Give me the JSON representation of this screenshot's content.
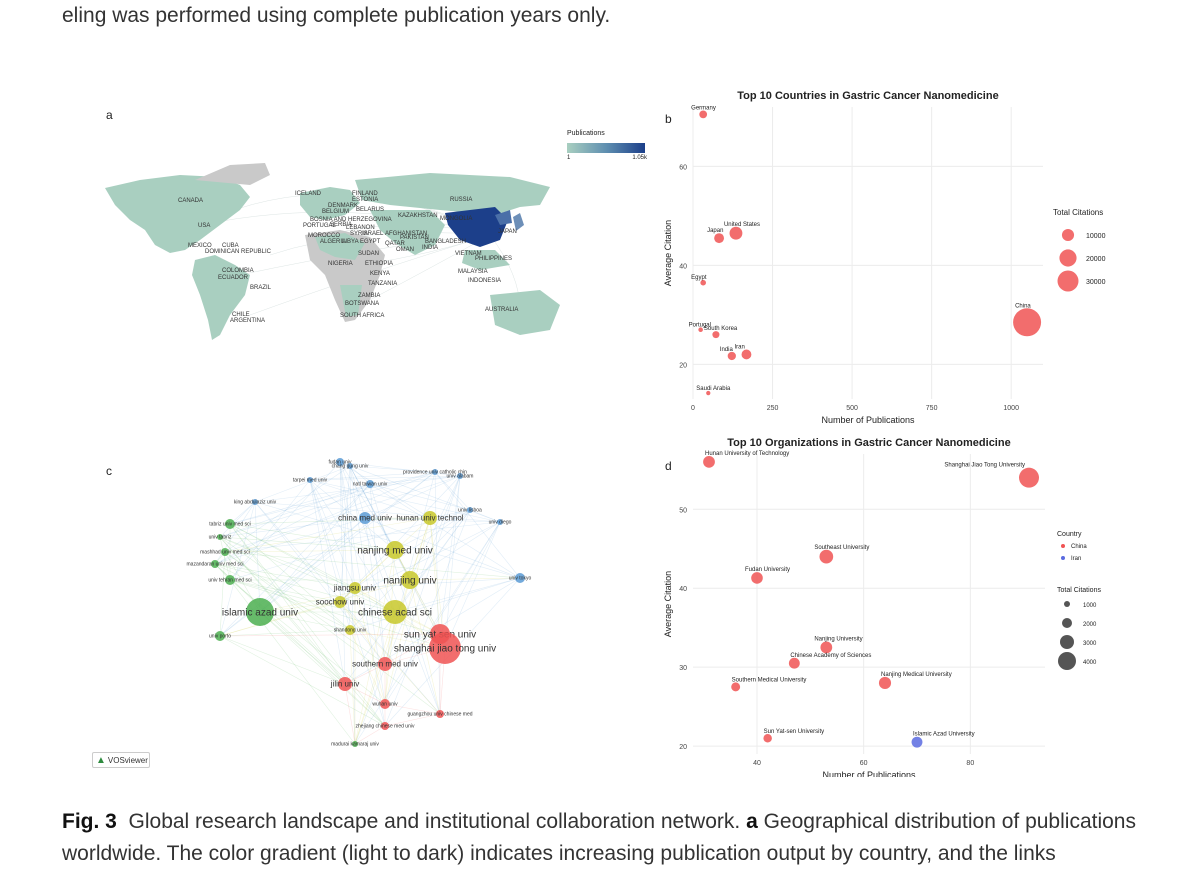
{
  "top_text": "eling was performed using complete publication years only.",
  "caption": {
    "fig_label": "Fig. 3",
    "text_part1": "Global research landscape and institutional collaboration network.",
    "panel_a": "a",
    "text_part2": "Geographical distribution of publications worldwide. The color gradient (light to dark) indicates increasing publication output by country, and the links"
  },
  "panel_a": {
    "letter": "a",
    "legend_title": "Publications",
    "legend_min": "1",
    "legend_max": "1.05k",
    "colors": {
      "land_low": "#a9cfc0",
      "land_high": "#1c3f8a",
      "no_data": "#c9c9c9"
    },
    "country_labels": [
      "ICELAND",
      "FINLAND",
      "ESTONIA",
      "RUSSIA",
      "CANADA",
      "DENMARK",
      "BELGIUM",
      "BELARUS",
      "KAZAKHSTAN",
      "MONGOLIA",
      "BOSNIA AND HERZEGOVINA",
      "USA",
      "PORTUGAL",
      "SERBIA",
      "LEBANON",
      "MOROCCO",
      "SYRIA",
      "ISRAEL",
      "AFGHANISTAN",
      "PAKISTAN",
      "JAPAN",
      "ALGERIA",
      "LIBYA",
      "EGYPT",
      "QATAR",
      "OMAN",
      "INDIA",
      "BANGLADESH",
      "MEXICO",
      "CUBA",
      "DOMINICAN REPUBLIC",
      "SUDAN",
      "VIETNAM",
      "PHILIPPINES",
      "NIGERIA",
      "ETHIOPIA",
      "COLOMBIA",
      "ECUADOR",
      "KENYA",
      "MALAYSIA",
      "TANZANIA",
      "INDONESIA",
      "BRAZIL",
      "ZAMBIA",
      "BOTSWANA",
      "AUSTRALIA",
      "CHILE",
      "ARGENTINA",
      "SOUTH AFRICA"
    ]
  },
  "panel_b": {
    "letter": "b",
    "chart_data": {
      "type": "scatter",
      "title": "Top 10 Countries in Gastric Cancer Nanomedicine",
      "xlabel": "Number of Publications",
      "ylabel": "Average Citation",
      "xlim": [
        0,
        1100
      ],
      "ylim": [
        13,
        72
      ],
      "xticks": [
        "0",
        "250",
        "500",
        "750",
        "1000"
      ],
      "yticks": [
        "20",
        "40",
        "60"
      ],
      "size_legend_title": "Total Citations",
      "size_legend": [
        "10000",
        "20000",
        "30000"
      ],
      "color": "#f05454",
      "points": [
        {
          "label": "Germany",
          "x": 32,
          "y": 70.5,
          "size": 2300
        },
        {
          "label": "United States",
          "x": 135,
          "y": 46.5,
          "size": 6300
        },
        {
          "label": "Japan",
          "x": 82,
          "y": 45.5,
          "size": 3700
        },
        {
          "label": "Egypt",
          "x": 32,
          "y": 36.5,
          "size": 1200
        },
        {
          "label": "China",
          "x": 1050,
          "y": 28.5,
          "size": 30000
        },
        {
          "label": "Portugal",
          "x": 24,
          "y": 27,
          "size": 800
        },
        {
          "label": "South Korea",
          "x": 72,
          "y": 26,
          "size": 1900
        },
        {
          "label": "India",
          "x": 122,
          "y": 21.7,
          "size": 2600
        },
        {
          "label": "Iran",
          "x": 168,
          "y": 22,
          "size": 3700
        },
        {
          "label": "Saudi Arabia",
          "x": 48,
          "y": 14.2,
          "size": 700
        }
      ]
    }
  },
  "panel_c": {
    "letter": "c",
    "vosviewer_label": "VOSviewer",
    "nodes": [
      {
        "label": "fudan univ",
        "c": "#5b9bd5"
      },
      {
        "label": "chang gung univ",
        "c": "#5b9bd5"
      },
      {
        "label": "providence univ catholic chin",
        "c": "#5b9bd5"
      },
      {
        "label": "tarpei med univ",
        "c": "#5b9bd5"
      },
      {
        "label": "univ alabam",
        "c": "#5b9bd5"
      },
      {
        "label": "natl taiwan univ",
        "c": "#5b9bd5"
      },
      {
        "label": "univ lisboa",
        "c": "#5b9bd5"
      },
      {
        "label": "univ diego",
        "c": "#5b9bd5"
      },
      {
        "label": "king abdulaziz univ",
        "c": "#5b9bd5"
      },
      {
        "label": "tabriz univ med sci",
        "c": "#4caf50"
      },
      {
        "label": "hunan univ technol",
        "c": "#c8c82a"
      },
      {
        "label": "china med univ",
        "c": "#5b9bd5"
      },
      {
        "label": "univ tabriz",
        "c": "#4caf50"
      },
      {
        "label": "nanjing med univ",
        "c": "#c8c82a"
      },
      {
        "label": "mashhad univ med sci",
        "c": "#4caf50"
      },
      {
        "label": "mazandaran univ med sci",
        "c": "#4caf50"
      },
      {
        "label": "univ tehran med sci",
        "c": "#4caf50"
      },
      {
        "label": "nanjing univ",
        "c": "#c8c82a"
      },
      {
        "label": "univ tokyo",
        "c": "#5b9bd5"
      },
      {
        "label": "jiangsu univ",
        "c": "#c8c82a"
      },
      {
        "label": "soochow univ",
        "c": "#c8c82a"
      },
      {
        "label": "islamic azad univ",
        "c": "#4caf50"
      },
      {
        "label": "chinese acad sci",
        "c": "#c8c82a"
      },
      {
        "label": "sun yat sen univ",
        "c": "#f05454"
      },
      {
        "label": "univ porto",
        "c": "#4caf50"
      },
      {
        "label": "shandong univ",
        "c": "#c8c82a"
      },
      {
        "label": "shanghai jiao tong univ",
        "c": "#f05454"
      },
      {
        "label": "southern med univ",
        "c": "#f05454"
      },
      {
        "label": "jilin univ",
        "c": "#f05454"
      },
      {
        "label": "wuhan univ",
        "c": "#f05454"
      },
      {
        "label": "guangzhou univ chinese med",
        "c": "#f05454"
      },
      {
        "label": "zhejiang chinese med univ",
        "c": "#f05454"
      },
      {
        "label": "madurai kamaraj univ",
        "c": "#4caf50"
      }
    ]
  },
  "panel_d": {
    "letter": "d",
    "chart_data": {
      "type": "scatter",
      "title": "Top 10 Organizations in Gastric Cancer Nanomedicine",
      "xlabel": "Number of Publications",
      "ylabel": "Average Citation",
      "xlim": [
        28,
        94
      ],
      "ylim": [
        19,
        57
      ],
      "xticks": [
        "40",
        "60",
        "80"
      ],
      "yticks": [
        "20",
        "30",
        "40",
        "50"
      ],
      "color_legend_title": "Country",
      "color_legend": [
        {
          "name": "China",
          "color": "#f05454"
        },
        {
          "name": "Iran",
          "color": "#5b6be0"
        }
      ],
      "size_legend_title": "Total Citations",
      "size_legend": [
        "1000",
        "2000",
        "3000",
        "4000"
      ],
      "points": [
        {
          "label": "Hunan University of Technology",
          "x": 31,
          "y": 56,
          "size": 1700,
          "country": "China"
        },
        {
          "label": "Shanghai Jiao Tong University",
          "x": 91,
          "y": 54,
          "size": 4900,
          "country": "China"
        },
        {
          "label": "Southeast University",
          "x": 53,
          "y": 44,
          "size": 2300,
          "country": "China"
        },
        {
          "label": "Fudan University",
          "x": 40,
          "y": 41.3,
          "size": 1650,
          "country": "China"
        },
        {
          "label": "Nanjing University",
          "x": 53,
          "y": 32.5,
          "size": 1700,
          "country": "China"
        },
        {
          "label": "Chinese Academy of Sciences",
          "x": 47,
          "y": 30.5,
          "size": 1450,
          "country": "China"
        },
        {
          "label": "Nanjing Medical University",
          "x": 64,
          "y": 28,
          "size": 1800,
          "country": "China"
        },
        {
          "label": "Southern Medical University",
          "x": 36,
          "y": 27.5,
          "size": 980,
          "country": "China"
        },
        {
          "label": "Sun Yat-sen University",
          "x": 42,
          "y": 21,
          "size": 880,
          "country": "China"
        },
        {
          "label": "Islamic Azad University",
          "x": 70,
          "y": 20.5,
          "size": 1450,
          "country": "Iran"
        }
      ]
    }
  }
}
